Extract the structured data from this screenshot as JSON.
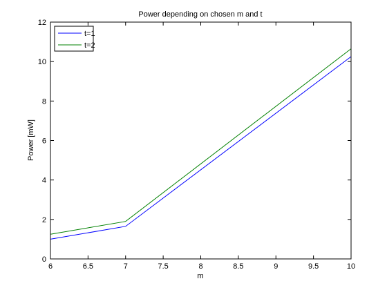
{
  "chart_data": {
    "type": "line",
    "title": "Power depending on chosen m and t",
    "xlabel": "m",
    "ylabel": "Power [mW]",
    "xlim": [
      6,
      10
    ],
    "ylim": [
      0,
      12
    ],
    "xticks": [
      "6",
      "6.5",
      "7",
      "7.5",
      "8",
      "8.5",
      "9",
      "9.5",
      "10"
    ],
    "yticks": [
      "0",
      "2",
      "4",
      "6",
      "8",
      "10",
      "12"
    ],
    "grid": false,
    "legend_position": "top-left",
    "x": [
      6,
      7,
      10
    ],
    "series": [
      {
        "name": "t=1",
        "color": "#0000ff",
        "values": [
          1.0,
          1.65,
          10.25
        ]
      },
      {
        "name": "t=2",
        "color": "#008000",
        "values": [
          1.25,
          1.9,
          10.65
        ]
      }
    ]
  }
}
